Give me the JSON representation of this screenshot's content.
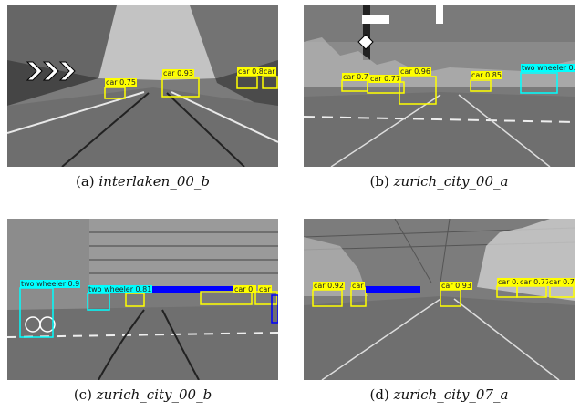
{
  "figure": {
    "panels": [
      {
        "id": "a",
        "caption_prefix": "(a)",
        "caption_name": "interlaken_00_b",
        "detections": [
          {
            "label": "car 0.75",
            "class": "car"
          },
          {
            "label": "car 0.93",
            "class": "car"
          },
          {
            "label": "car 0.8",
            "class": "car"
          },
          {
            "label": "car",
            "class": "car"
          }
        ]
      },
      {
        "id": "b",
        "caption_prefix": "(b)",
        "caption_name": "zurich_city_00_a",
        "detections": [
          {
            "label": "car 0.7",
            "class": "car"
          },
          {
            "label": "car 0.77",
            "class": "car"
          },
          {
            "label": "car 0.96",
            "class": "car"
          },
          {
            "label": "car 0.85",
            "class": "car"
          },
          {
            "label": "two wheeler 0.",
            "class": "two_wheeler"
          }
        ]
      },
      {
        "id": "c",
        "caption_prefix": "(c)",
        "caption_name": "zurich_city_00_b",
        "detections": [
          {
            "label": "two wheeler 0.9",
            "class": "two_wheeler"
          },
          {
            "label": "two wheeler 0.81",
            "class": "two_wheeler"
          },
          {
            "label": "car 0.",
            "class": "car"
          },
          {
            "label": "car",
            "class": "car"
          }
        ]
      },
      {
        "id": "d",
        "caption_prefix": "(d)",
        "caption_name": "zurich_city_07_a",
        "detections": [
          {
            "label": "car 0.92",
            "class": "car"
          },
          {
            "label": "car",
            "class": "car"
          },
          {
            "label": "car 0.93",
            "class": "car"
          },
          {
            "label": "car 0.",
            "class": "car"
          },
          {
            "label": "car 0.77",
            "class": "car"
          },
          {
            "label": "car 0.7",
            "class": "car"
          }
        ]
      }
    ],
    "class_colors": {
      "car": "#ffff00",
      "two_wheeler": "#00ffff",
      "bus": "#0000ff"
    }
  }
}
